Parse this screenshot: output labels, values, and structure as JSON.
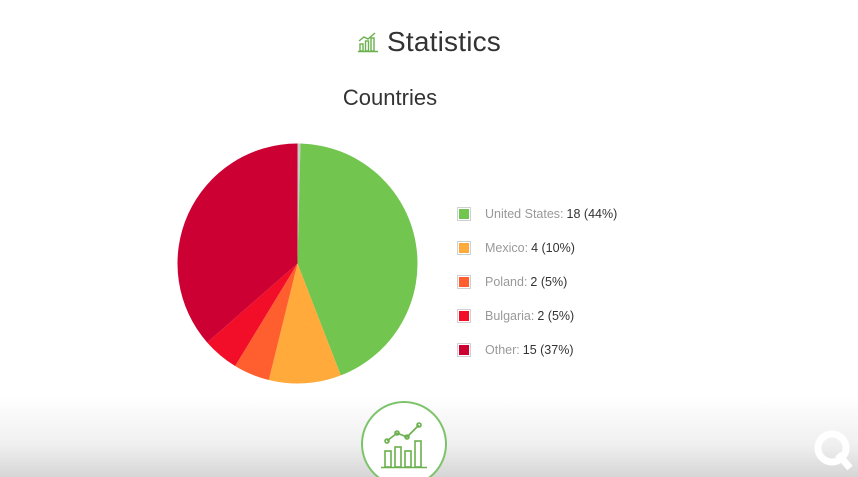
{
  "header": {
    "title": "Statistics",
    "icon": "bar-chart-trend-icon",
    "accent_color": "#6ab04c"
  },
  "chart_data": {
    "type": "pie",
    "title": "Countries",
    "slices": [
      {
        "label": "United States",
        "value": 18,
        "percent": "44%",
        "color": "#72c64f"
      },
      {
        "label": "Mexico",
        "value": 4,
        "percent": "10%",
        "color": "#ffaa3a"
      },
      {
        "label": "Poland",
        "value": 2,
        "percent": "5%",
        "color": "#ff5e2f"
      },
      {
        "label": "Bulgaria",
        "value": 2,
        "percent": "5%",
        "color": "#f20d28"
      },
      {
        "label": "Other",
        "value": 15,
        "percent": "37%",
        "color": "#cc0033"
      }
    ],
    "legend_position": "right"
  },
  "footer": {
    "badge_icon": "chart-growth-icon",
    "watermark_icon": "logo-watermark-icon"
  }
}
